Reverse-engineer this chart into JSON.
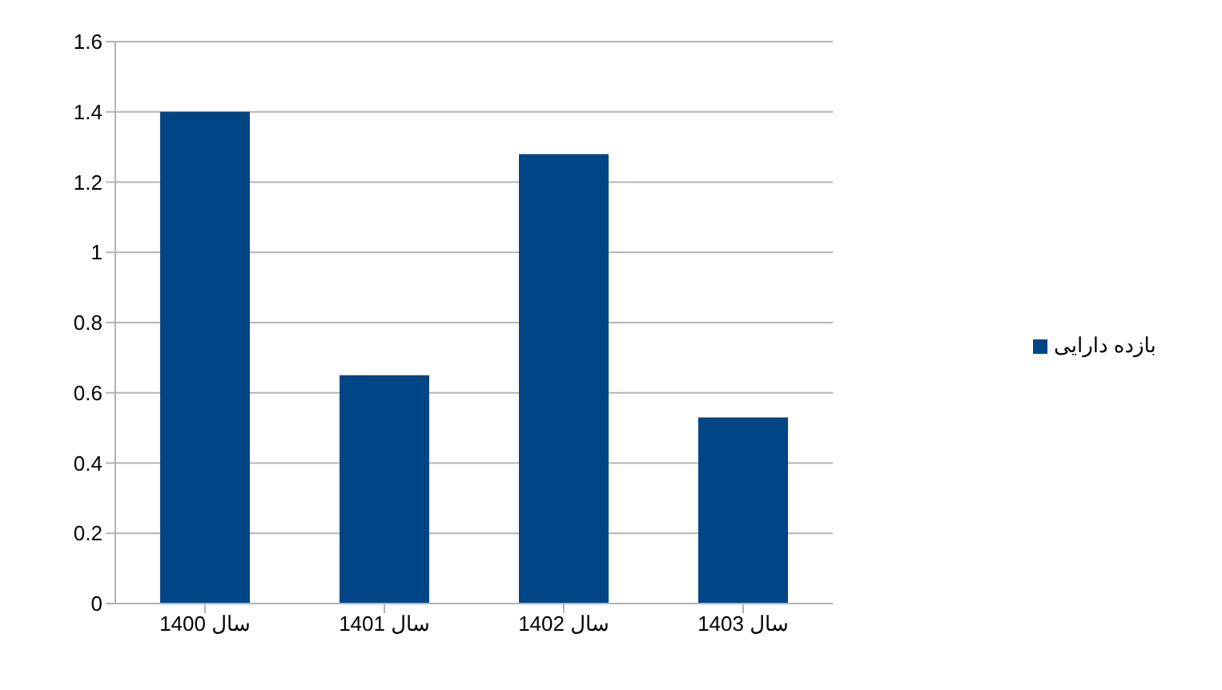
{
  "chart_data": {
    "type": "bar",
    "categories": [
      "سال 1400",
      "سال 1401",
      "سال 1402",
      "سال 1403"
    ],
    "series": [
      {
        "name": "بازده دارایی",
        "color": "#004586",
        "values": [
          1.4,
          0.65,
          1.28,
          0.53
        ]
      }
    ],
    "ylim": [
      0,
      1.6
    ],
    "yticks": [
      0,
      0.2,
      0.4,
      0.6,
      0.8,
      1,
      1.2,
      1.4,
      1.6
    ],
    "grid": "y",
    "legend": "right"
  }
}
